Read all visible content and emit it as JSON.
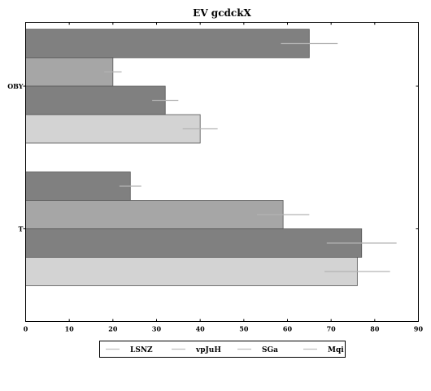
{
  "chart_data": {
    "type": "bar",
    "orientation": "horizontal",
    "title": "EV gcdckX",
    "xlabel": "",
    "ylabel": "",
    "categories": [
      "OBY",
      "T"
    ],
    "xlim": [
      0,
      90
    ],
    "xticks": [
      0,
      10,
      20,
      30,
      40,
      50,
      60,
      70,
      80,
      90
    ],
    "grid": false,
    "legend_position": "bottom-center",
    "series": [
      {
        "name": "LSNZ",
        "values": [
          65,
          24
        ],
        "errors": [
          6.5,
          2.5
        ],
        "color": "#808080"
      },
      {
        "name": "vpJuH",
        "values": [
          20,
          59
        ],
        "errors": [
          2.0,
          6.0
        ],
        "color": "#a6a6a6"
      },
      {
        "name": "SGa",
        "values": [
          32,
          77
        ],
        "errors": [
          3.0,
          8.0
        ],
        "color": "#808080"
      },
      {
        "name": "Mqi",
        "values": [
          40,
          76
        ],
        "errors": [
          4.0,
          7.5
        ],
        "color": "#d3d3d3"
      }
    ]
  }
}
